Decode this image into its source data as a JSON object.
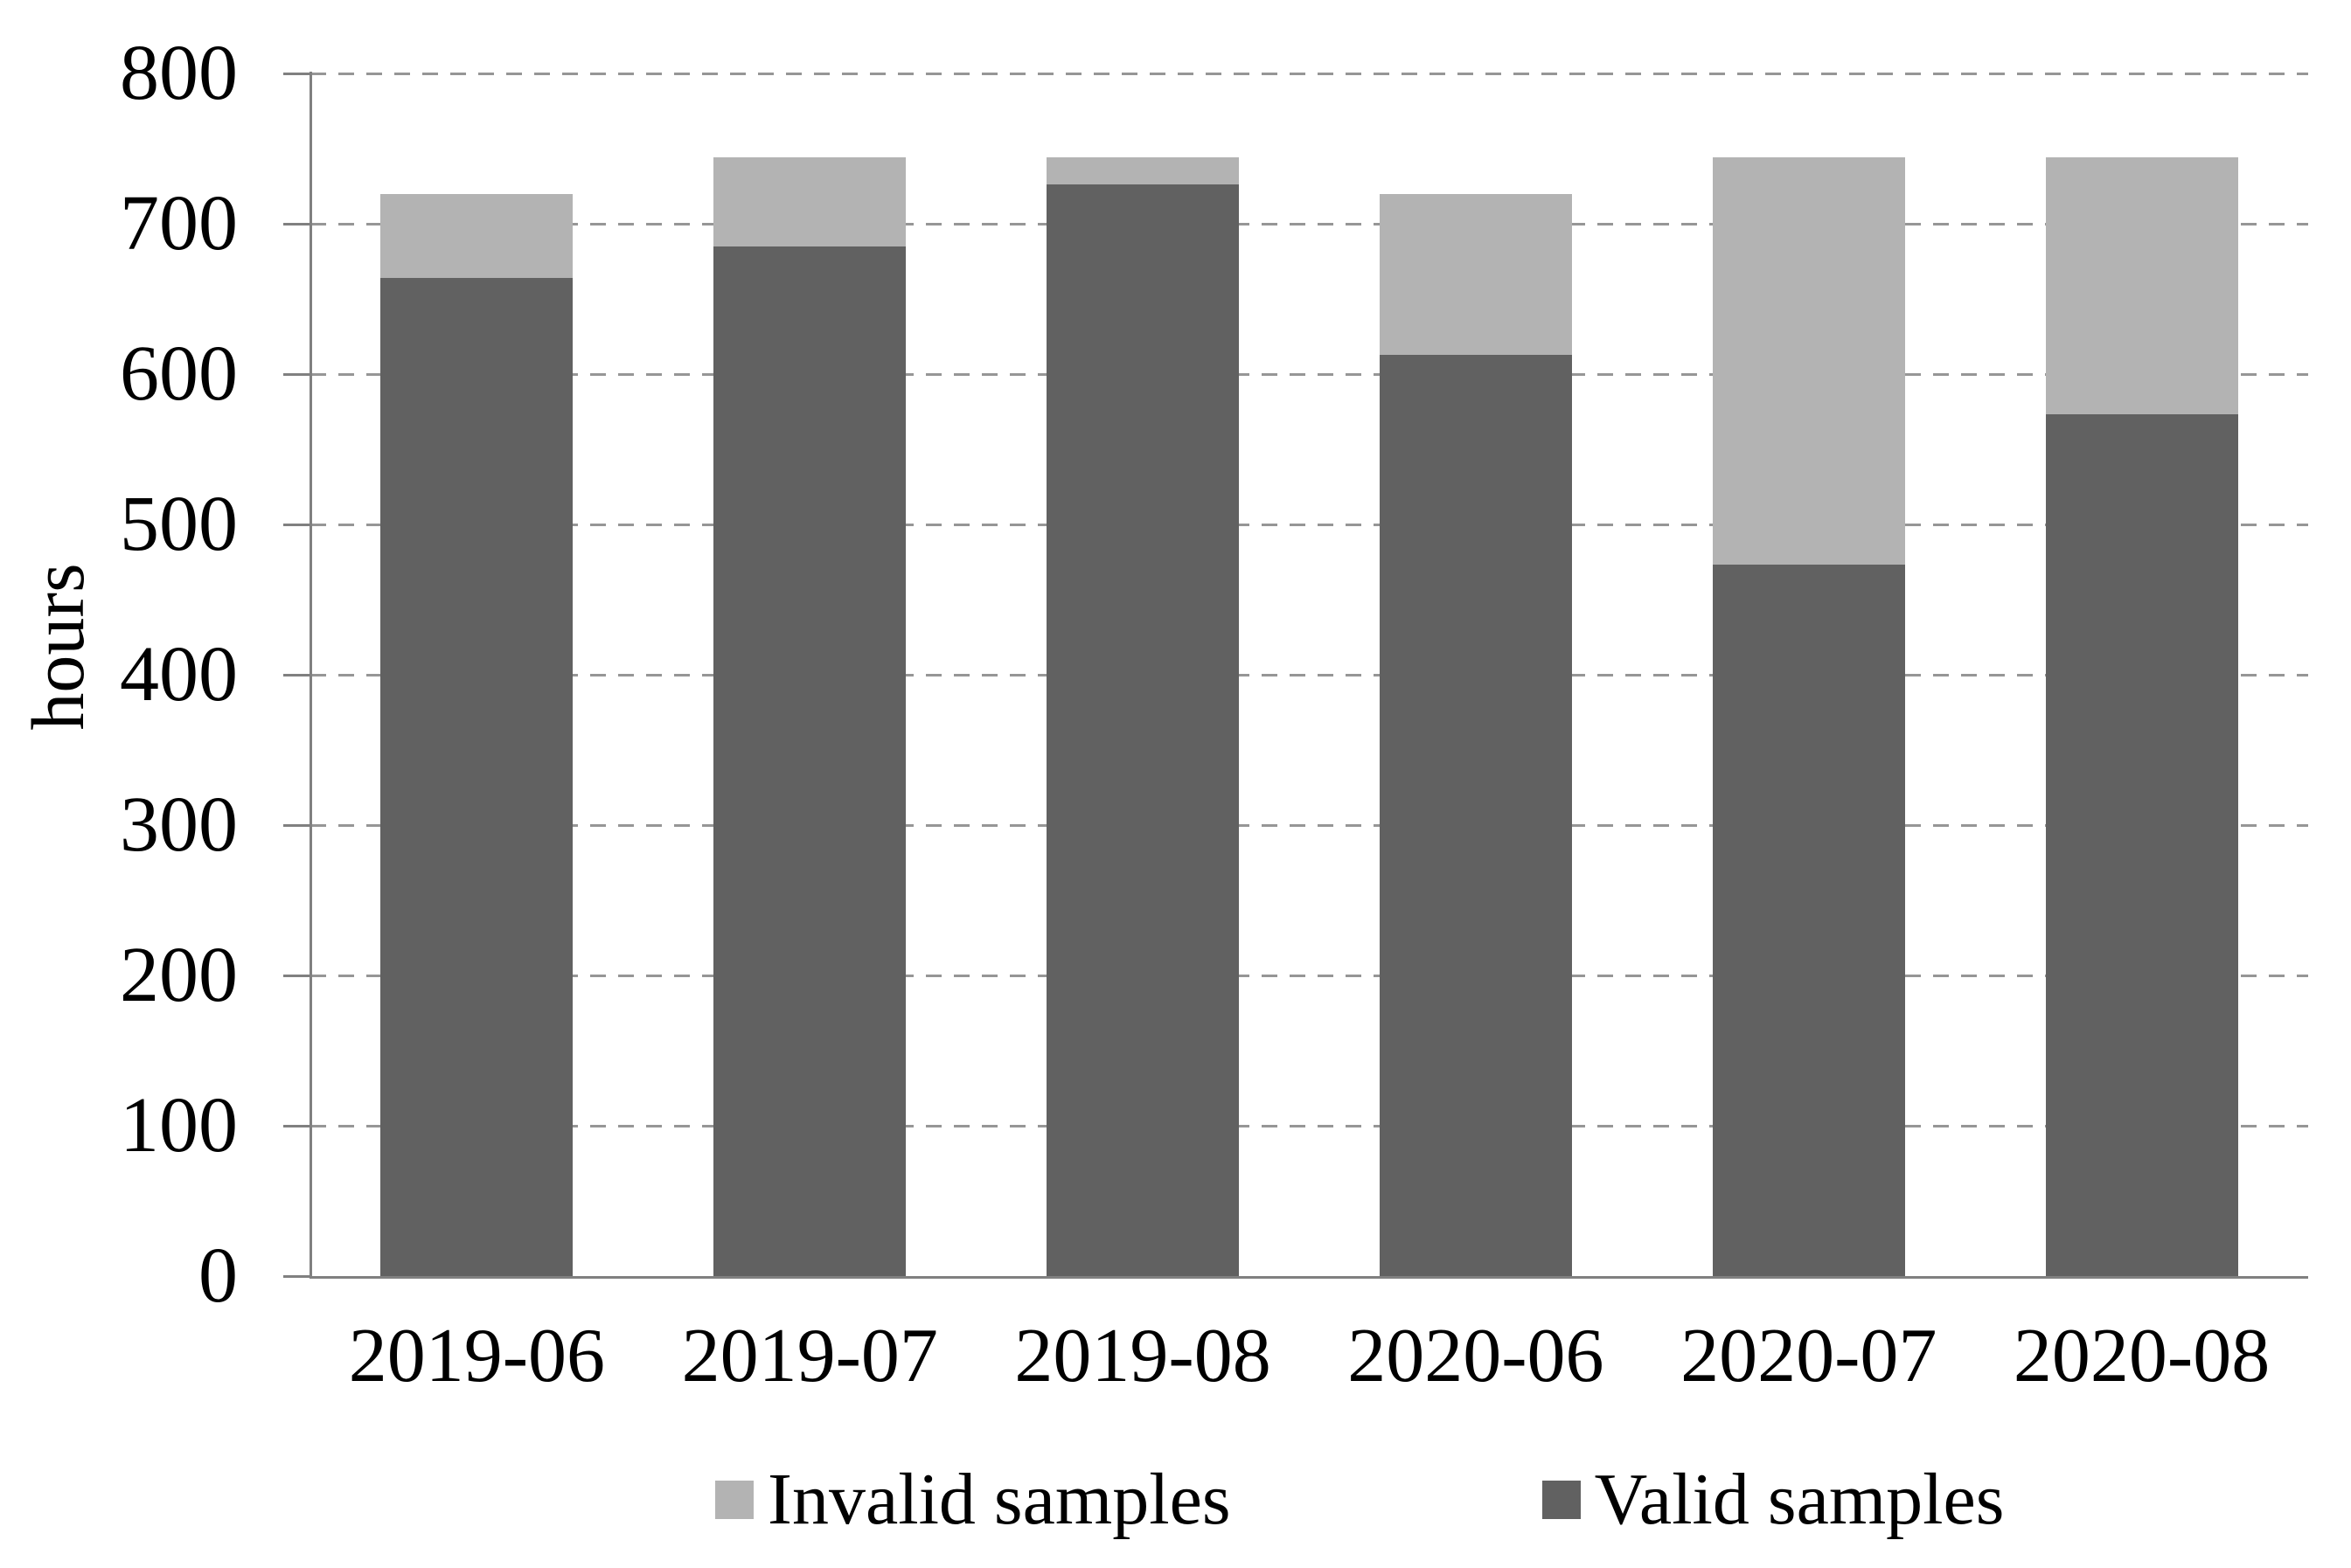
{
  "chart_data": {
    "type": "bar",
    "stacked": true,
    "title": "",
    "categories": [
      "2019-06",
      "2019-07",
      "2019-08",
      "2020-06",
      "2020-07",
      "2020-08"
    ],
    "series": [
      {
        "name": "Valid samples",
        "color": "#616161",
        "values": [
          664,
          685,
          726,
          613,
          473,
          573
        ]
      },
      {
        "name": "Invalid samples",
        "color": "#b3b3b3",
        "values": [
          56,
          59,
          18,
          107,
          271,
          171
        ]
      }
    ],
    "totals": [
      720,
      744,
      744,
      720,
      744,
      744
    ],
    "xlabel": "",
    "ylabel": "hours",
    "ylim": [
      0,
      800
    ],
    "ytick_step": 100,
    "ytick_labels": [
      "0",
      "100",
      "200",
      "300",
      "400",
      "500",
      "600",
      "700",
      "800"
    ],
    "grid": "horizontal-dashed",
    "gridline_color": "#969696",
    "axis_color": "#808080",
    "legend_position": "bottom",
    "legend_order": [
      "Invalid samples",
      "Valid samples"
    ]
  }
}
